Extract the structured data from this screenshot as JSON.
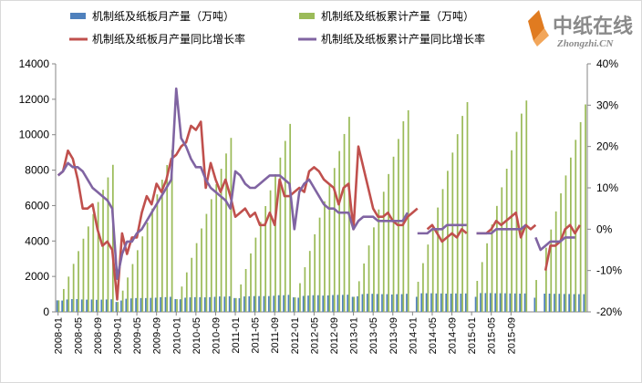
{
  "logo": {
    "cn": "中纸在线",
    "en": "Zhongzhi.CN"
  },
  "chart_data": {
    "type": "bar",
    "legend_position": "top",
    "grid": false,
    "y_left": {
      "min": 0,
      "max": 14000,
      "ticks": [
        "0",
        "2000",
        "4000",
        "6000",
        "8000",
        "10000",
        "12000",
        "14000"
      ]
    },
    "y_right": {
      "min": -20,
      "max": 40,
      "ticks": [
        "-20%",
        "-10%",
        "0%",
        "10%",
        "20%",
        "30%",
        "40%"
      ]
    },
    "x_tick_labels": [
      "2008-01",
      "2008-05",
      "2008-09",
      "2009-01",
      "2009-05",
      "2009-09",
      "2010-01",
      "2010-05",
      "2010-09",
      "2011-01",
      "2011-05",
      "2011-09",
      "2012-01",
      "2012-05",
      "2012-09",
      "2013-01",
      "2013-05",
      "2013-09",
      "2014-01",
      "2014-05",
      "2014-09",
      "2015-01",
      "2015-05",
      "2015-09"
    ],
    "series": [
      {
        "name": "机制纸及纸板月产量（万吨）",
        "kind": "bar",
        "axis": "left",
        "color": "#4f81bd",
        "values": [
          650,
          640,
          700,
          720,
          720,
          700,
          690,
          700,
          680,
          690,
          700,
          710,
          560,
          640,
          740,
          760,
          780,
          780,
          780,
          790,
          800,
          830,
          830,
          850,
          720,
          710,
          800,
          820,
          830,
          830,
          820,
          830,
          850,
          870,
          860,
          880,
          780,
          770,
          870,
          880,
          890,
          890,
          890,
          890,
          910,
          940,
          940,
          960,
          820,
          800,
          900,
          920,
          940,
          940,
          920,
          930,
          950,
          960,
          960,
          970,
          850,
          880,
          1000,
          1020,
          1020,
          1010,
          1000,
          1000,
          980,
          1000,
          1000,
          1020,
          null,
          850,
          1050,
          1050,
          1050,
          1040,
          1040,
          1030,
          1030,
          1040,
          1030,
          1040,
          null,
          850,
          1060,
          1060,
          1060,
          1050,
          1050,
          1050,
          1040,
          1040,
          1030,
          1040,
          null,
          800,
          null,
          1030,
          1030,
          1020,
          1020,
          1010,
          1010,
          1000,
          1000,
          1000
        ]
      },
      {
        "name": "机制纸及纸板累计产量（万吨）",
        "kind": "bar",
        "axis": "left",
        "color": "#9bbb59",
        "values": [
          650,
          1290,
          1990,
          2710,
          3430,
          4130,
          4820,
          5520,
          6200,
          6890,
          7590,
          8300,
          560,
          1200,
          1940,
          2700,
          3480,
          4260,
          5040,
          5830,
          6630,
          7460,
          8290,
          9140,
          720,
          1430,
          2230,
          3050,
          3880,
          4710,
          5530,
          6360,
          7210,
          8080,
          8940,
          9820,
          780,
          1550,
          2420,
          3300,
          4190,
          5080,
          5970,
          6860,
          7770,
          8710,
          9650,
          10610,
          820,
          1620,
          2520,
          3440,
          4380,
          5320,
          6240,
          7170,
          8120,
          9080,
          10040,
          11010,
          850,
          1730,
          2730,
          3750,
          4770,
          5780,
          6780,
          7780,
          8760,
          9760,
          10760,
          11380,
          null,
          1700,
          2750,
          3800,
          4850,
          5890,
          6930,
          7960,
          8990,
          10030,
          11060,
          11840,
          null,
          1750,
          2810,
          3870,
          4930,
          5980,
          7030,
          8080,
          9120,
          10160,
          11190,
          11930,
          null,
          1800,
          null,
          3620,
          4650,
          5670,
          6690,
          7700,
          8710,
          9710,
          10710,
          11710
        ]
      },
      {
        "name": "机制纸及纸板月产量同比增长率",
        "kind": "line",
        "axis": "right",
        "color": "#c0504d",
        "values": [
          13,
          14,
          19,
          17,
          12,
          5,
          5,
          6,
          0,
          -4,
          -3,
          -5,
          -17,
          -1,
          -6,
          -2,
          -2,
          4,
          8,
          6,
          11,
          9,
          12,
          17,
          18,
          20,
          21,
          25,
          24,
          26,
          10,
          16,
          12,
          9,
          12,
          8,
          3,
          4,
          5,
          3,
          4,
          1,
          1,
          4,
          1,
          12,
          8,
          8,
          9,
          10,
          9,
          14,
          15,
          14,
          12,
          11,
          10,
          6,
          10,
          11,
          0,
          20,
          15,
          10,
          5,
          3,
          3,
          4,
          2,
          1,
          1,
          3,
          4,
          5,
          null,
          0,
          1,
          -1,
          -3,
          -2,
          -1,
          -2,
          0,
          -1,
          null,
          -1,
          -1,
          -1,
          0,
          2,
          1,
          2,
          3,
          4,
          -2,
          1,
          0,
          1,
          null,
          -10,
          -4,
          -4,
          -3,
          0,
          1,
          -1,
          1
        ]
      },
      {
        "name": "机制纸及纸板累计产量同比增长率",
        "kind": "line",
        "axis": "right",
        "color": "#8064a2",
        "values": [
          13,
          14,
          16,
          15,
          15,
          14,
          12,
          10,
          9,
          8,
          7,
          5,
          -12,
          -6,
          -3,
          -3,
          -1,
          0,
          2,
          4,
          6,
          8,
          10,
          12,
          34,
          22,
          20,
          17,
          15,
          15,
          12,
          10,
          9,
          8,
          7,
          5,
          14,
          13,
          11,
          10,
          10,
          11,
          12,
          13,
          13,
          13,
          12,
          11,
          0,
          9,
          11,
          12,
          10,
          8,
          6,
          5,
          5,
          4,
          4,
          4,
          0,
          2,
          3,
          3,
          3,
          2,
          2,
          2,
          2,
          2,
          2,
          4,
          null,
          -1,
          -1,
          -1,
          0,
          0,
          0,
          1,
          1,
          1,
          1,
          1,
          null,
          -1,
          -1,
          -1,
          -1,
          0,
          0,
          0,
          0,
          0,
          0,
          1,
          null,
          -2,
          -5,
          -4,
          -3,
          -3,
          -3,
          -2,
          -2,
          -2
        ]
      }
    ]
  }
}
